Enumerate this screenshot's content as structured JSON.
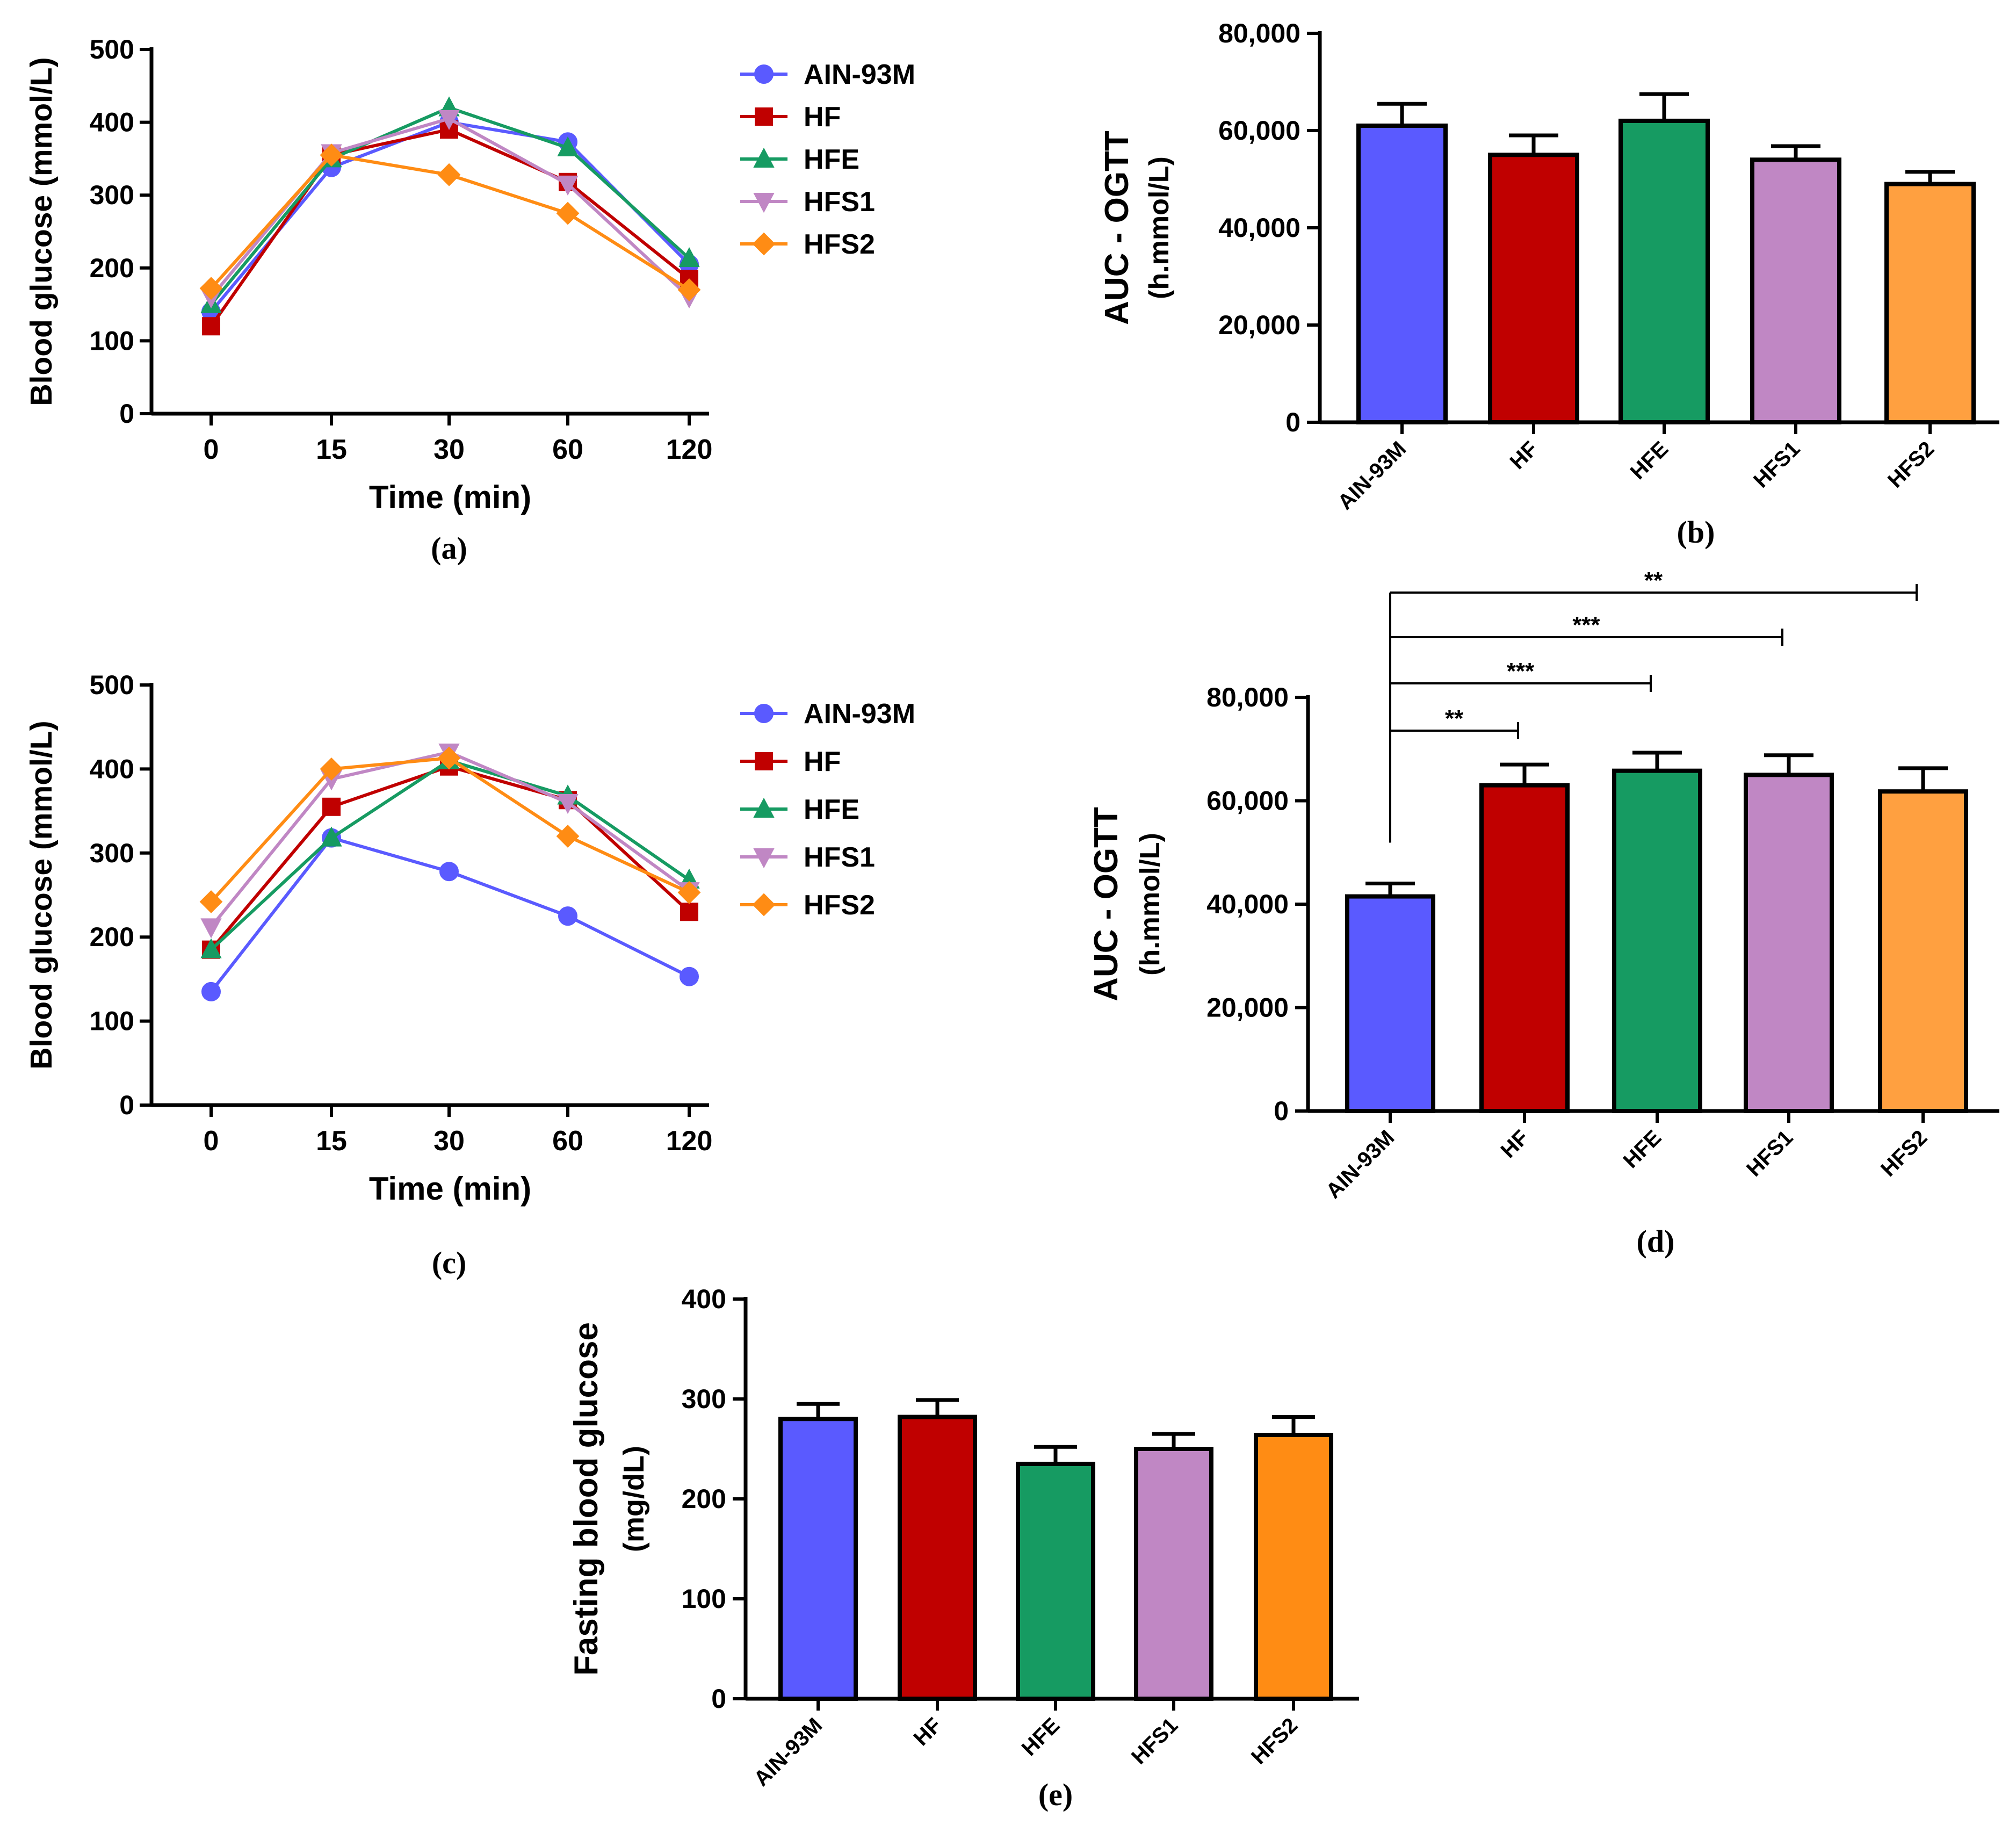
{
  "chart_data": [
    {
      "id": "a",
      "type": "line",
      "panel_label": "(a)",
      "xlabel": "Time (min)",
      "ylabel": "Blood glucose (mmol/L)",
      "categories": [
        "0",
        "15",
        "30",
        "60",
        "120"
      ],
      "ylim": [
        0,
        500
      ],
      "yticks": [
        "0",
        "100",
        "200",
        "300",
        "400",
        "500"
      ],
      "legend": "top-right",
      "series": [
        {
          "name": "AIN-93M",
          "color": "#5a5aff",
          "marker": "circle",
          "values": [
            140,
            338,
            400,
            373,
            205
          ]
        },
        {
          "name": "HF",
          "color": "#c00000",
          "marker": "square",
          "values": [
            120,
            355,
            390,
            318,
            185
          ]
        },
        {
          "name": "HFE",
          "color": "#169b62",
          "marker": "triangle-up",
          "values": [
            150,
            350,
            420,
            365,
            213
          ]
        },
        {
          "name": "HFS1",
          "color": "#c087c4",
          "marker": "triangle-down",
          "values": [
            160,
            358,
            405,
            315,
            160
          ]
        },
        {
          "name": "HFS2",
          "color": "#ff8c14",
          "marker": "diamond",
          "values": [
            172,
            355,
            328,
            275,
            170
          ]
        }
      ]
    },
    {
      "id": "b",
      "type": "bar",
      "panel_label": "(b)",
      "ylabel": [
        "AUC - OGTT",
        "(h.mmol/L)"
      ],
      "categories": [
        "AIN-93M",
        "HF",
        "HFE",
        "HFS1",
        "HFS2"
      ],
      "ylim": [
        0,
        80000
      ],
      "yticks": [
        "0",
        "20,000",
        "40,000",
        "60,000",
        "80,000"
      ],
      "colors": [
        "#5a5aff",
        "#c00000",
        "#169b62",
        "#c087c4",
        "#ffa040"
      ],
      "values": [
        61000,
        55000,
        62000,
        54000,
        49000
      ],
      "errors": [
        4500,
        4000,
        5500,
        2800,
        2500
      ]
    },
    {
      "id": "c",
      "type": "line",
      "panel_label": "(c)",
      "xlabel": "Time (min)",
      "ylabel": "Blood glucose (mmol/L)",
      "categories": [
        "0",
        "15",
        "30",
        "60",
        "120"
      ],
      "ylim": [
        0,
        500
      ],
      "yticks": [
        "0",
        "100",
        "200",
        "300",
        "400",
        "500"
      ],
      "legend": "top-right",
      "series": [
        {
          "name": "AIN-93M",
          "color": "#5a5aff",
          "marker": "circle",
          "values": [
            135,
            318,
            278,
            225,
            153
          ]
        },
        {
          "name": "HF",
          "color": "#c00000",
          "marker": "square",
          "values": [
            185,
            355,
            403,
            363,
            230
          ]
        },
        {
          "name": "HFE",
          "color": "#169b62",
          "marker": "triangle-up",
          "values": [
            185,
            318,
            410,
            368,
            268
          ]
        },
        {
          "name": "HFS1",
          "color": "#c087c4",
          "marker": "triangle-down",
          "values": [
            212,
            388,
            420,
            360,
            255
          ]
        },
        {
          "name": "HFS2",
          "color": "#ff8c14",
          "marker": "diamond",
          "values": [
            242,
            400,
            413,
            320,
            253
          ]
        }
      ]
    },
    {
      "id": "d",
      "type": "bar",
      "panel_label": "(d)",
      "ylabel": [
        "AUC - OGTT",
        "(h.mmol/L)"
      ],
      "categories": [
        "AIN-93M",
        "HF",
        "HFE",
        "HFS1",
        "HFS2"
      ],
      "ylim": [
        0,
        80000
      ],
      "yticks": [
        "0",
        "20,000",
        "40,000",
        "60,000",
        "80,000"
      ],
      "colors": [
        "#5a5aff",
        "#c00000",
        "#169b62",
        "#c087c4",
        "#ffa040"
      ],
      "values": [
        41500,
        63000,
        65800,
        65000,
        61800
      ],
      "errors": [
        2500,
        4000,
        3500,
        3800,
        4500
      ],
      "significance": [
        {
          "from": "AIN-93M",
          "to": "HF",
          "label": "**"
        },
        {
          "from": "AIN-93M",
          "to": "HFE",
          "label": "***"
        },
        {
          "from": "AIN-93M",
          "to": "HFS1",
          "label": "***"
        },
        {
          "from": "AIN-93M",
          "to": "HFS2",
          "label": "**"
        }
      ]
    },
    {
      "id": "e",
      "type": "bar",
      "panel_label": "(e)",
      "ylabel": [
        "Fasting blood glucose",
        "(mg/dL)"
      ],
      "categories": [
        "AIN-93M",
        "HF",
        "HFE",
        "HFS1",
        "HFS2"
      ],
      "ylim": [
        0,
        400
      ],
      "yticks": [
        "0",
        "100",
        "200",
        "300",
        "400"
      ],
      "colors": [
        "#5a5aff",
        "#c00000",
        "#169b62",
        "#c087c4",
        "#ff8c14"
      ],
      "values": [
        280,
        282,
        235,
        250,
        264
      ],
      "errors": [
        15,
        17,
        17,
        15,
        18
      ]
    }
  ]
}
